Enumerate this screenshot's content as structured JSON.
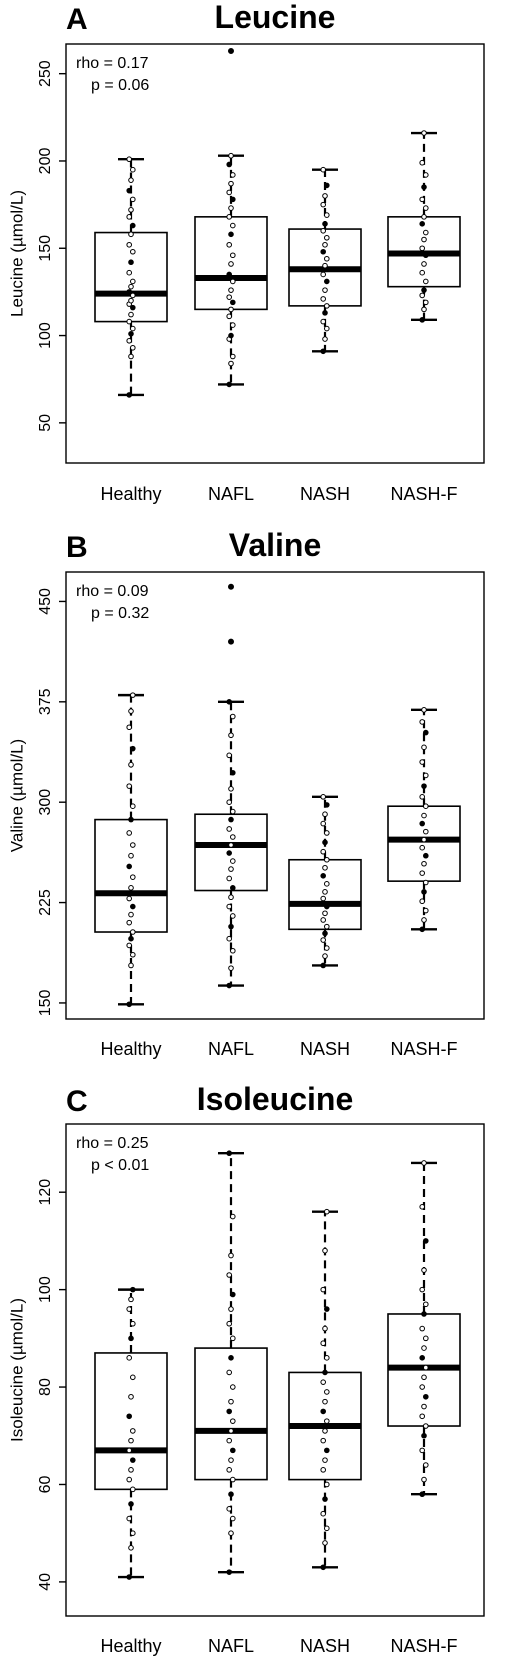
{
  "chart_data": [
    {
      "type": "box",
      "panel": "A",
      "title": "Leucine",
      "ylabel": "Leucine (µmol/L)",
      "ylim": [
        27,
        267
      ],
      "yticks": [
        50,
        100,
        150,
        200,
        250
      ],
      "categories": [
        "Healthy",
        "NAFL",
        "NASH",
        "NASH-F"
      ],
      "annotation": [
        "rho = 0.17",
        "p = 0.06"
      ],
      "boxes": [
        {
          "min": 66,
          "q1": 108,
          "median": 124,
          "q3": 159,
          "max": 201,
          "points": [
            66,
            88,
            93,
            97,
            101,
            104,
            108,
            112,
            116,
            118,
            120,
            123,
            125,
            128,
            131,
            136,
            142,
            148,
            152,
            158,
            163,
            168,
            172,
            178,
            183,
            189,
            195,
            201
          ]
        },
        {
          "min": 72,
          "q1": 115,
          "median": 133,
          "q3": 168,
          "max": 203,
          "outliers": [
            263
          ],
          "points": [
            72,
            84,
            88,
            98,
            100,
            106,
            111,
            115,
            119,
            122,
            126,
            131,
            135,
            141,
            146,
            152,
            158,
            163,
            168,
            173,
            178,
            182,
            187,
            192,
            198,
            203
          ]
        },
        {
          "min": 91,
          "q1": 117,
          "median": 138,
          "q3": 161,
          "max": 195,
          "points": [
            91,
            98,
            104,
            108,
            113,
            117,
            121,
            126,
            131,
            135,
            140,
            144,
            148,
            152,
            156,
            160,
            164,
            169,
            175,
            180,
            186,
            195
          ]
        },
        {
          "min": 109,
          "q1": 128,
          "median": 147,
          "q3": 168,
          "max": 216,
          "points": [
            109,
            115,
            119,
            123,
            126,
            131,
            136,
            141,
            146,
            150,
            155,
            159,
            164,
            168,
            173,
            178,
            185,
            192,
            199,
            216
          ]
        }
      ]
    },
    {
      "type": "box",
      "panel": "B",
      "title": "Valine",
      "ylabel": "Valine (µmol/L)",
      "ylim": [
        138,
        472
      ],
      "yticks": [
        150,
        225,
        300,
        375,
        450
      ],
      "categories": [
        "Healthy",
        "NAFL",
        "NASH",
        "NASH-F"
      ],
      "annotation": [
        "rho = 0.09",
        "p = 0.32"
      ],
      "boxes": [
        {
          "min": 149,
          "q1": 203,
          "median": 232,
          "q3": 287,
          "max": 380,
          "points": [
            149,
            178,
            186,
            193,
            198,
            203,
            210,
            216,
            222,
            228,
            236,
            244,
            252,
            260,
            268,
            277,
            287,
            297,
            312,
            328,
            340,
            356,
            368,
            380
          ]
        },
        {
          "min": 163,
          "q1": 234,
          "median": 268,
          "q3": 291,
          "max": 375,
          "outliers": [
            420,
            461
          ],
          "points": [
            163,
            176,
            189,
            198,
            207,
            215,
            222,
            229,
            236,
            243,
            250,
            256,
            262,
            268,
            274,
            280,
            287,
            293,
            300,
            310,
            322,
            335,
            350,
            364,
            375
          ]
        },
        {
          "min": 178,
          "q1": 205,
          "median": 224,
          "q3": 257,
          "max": 304,
          "points": [
            178,
            185,
            191,
            197,
            202,
            207,
            212,
            217,
            222,
            228,
            233,
            239,
            245,
            251,
            257,
            263,
            270,
            277,
            284,
            291,
            298,
            304
          ]
        },
        {
          "min": 205,
          "q1": 241,
          "median": 272,
          "q3": 297,
          "max": 369,
          "points": [
            205,
            212,
            219,
            226,
            233,
            240,
            247,
            254,
            260,
            266,
            272,
            278,
            284,
            290,
            297,
            304,
            312,
            320,
            330,
            341,
            352,
            360,
            369
          ]
        }
      ]
    },
    {
      "type": "box",
      "panel": "C",
      "title": "Isoleucine",
      "ylabel": "Isoleucine (µmol/L)",
      "ylim": [
        33,
        134
      ],
      "yticks": [
        40,
        60,
        80,
        100,
        120
      ],
      "categories": [
        "Healthy",
        "NAFL",
        "NASH",
        "NASH-F"
      ],
      "annotation": [
        "rho = 0.25",
        "p < 0.01"
      ],
      "boxes": [
        {
          "min": 41,
          "q1": 59,
          "median": 67,
          "q3": 87,
          "max": 100,
          "points": [
            41,
            47,
            50,
            53,
            56,
            59,
            61,
            63,
            65,
            67,
            69,
            71,
            74,
            78,
            82,
            86,
            90,
            93,
            96,
            98,
            100
          ]
        },
        {
          "min": 42,
          "q1": 61,
          "median": 71,
          "q3": 88,
          "max": 128,
          "points": [
            42,
            50,
            53,
            55,
            58,
            61,
            63,
            65,
            67,
            69,
            71,
            73,
            75,
            77,
            80,
            83,
            86,
            90,
            93,
            96,
            99,
            103,
            107,
            115,
            128
          ]
        },
        {
          "min": 43,
          "q1": 61,
          "median": 72,
          "q3": 83,
          "max": 116,
          "points": [
            43,
            48,
            51,
            54,
            57,
            60,
            63,
            65,
            67,
            69,
            71,
            73,
            75,
            77,
            79,
            81,
            83,
            86,
            89,
            92,
            96,
            100,
            108,
            116
          ]
        },
        {
          "min": 58,
          "q1": 72,
          "median": 84,
          "q3": 95,
          "max": 126,
          "points": [
            58,
            61,
            64,
            67,
            70,
            72,
            74,
            76,
            78,
            80,
            82,
            84,
            86,
            88,
            90,
            92,
            95,
            97,
            100,
            104,
            110,
            117,
            126
          ]
        }
      ]
    }
  ]
}
